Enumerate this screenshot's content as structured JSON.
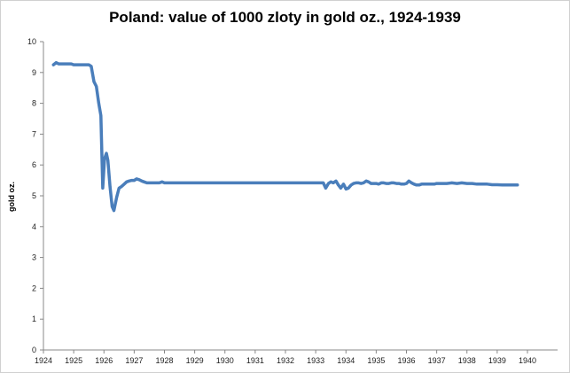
{
  "chart_data": {
    "type": "line",
    "title": "Poland: value of 1000 zloty in gold oz., 1924-1939",
    "xlabel": "",
    "ylabel": "gold oz.",
    "xlim": [
      1924,
      1940
    ],
    "ylim": [
      0,
      10
    ],
    "x_ticks": [
      "1924",
      "1925",
      "1926",
      "1927",
      "1928",
      "1929",
      "1930",
      "1931",
      "1932",
      "1933",
      "1934",
      "1935",
      "1936",
      "1937",
      "1938",
      "1939",
      "1940"
    ],
    "y_ticks": [
      "0",
      "1",
      "2",
      "3",
      "4",
      "5",
      "6",
      "7",
      "8",
      "9",
      "10"
    ],
    "grid": false,
    "legend": "none",
    "series": [
      {
        "color": "#4a7ebb",
        "x": [
          1924.33,
          1924.42,
          1924.5,
          1924.58,
          1924.67,
          1924.75,
          1924.83,
          1924.92,
          1925.0,
          1925.08,
          1925.17,
          1925.25,
          1925.33,
          1925.42,
          1925.5,
          1925.58,
          1925.67,
          1925.75,
          1925.83,
          1925.9,
          1925.96,
          1926.02,
          1926.08,
          1926.13,
          1926.2,
          1926.27,
          1926.33,
          1926.42,
          1926.5,
          1926.58,
          1926.67,
          1926.75,
          1926.83,
          1926.92,
          1927.0,
          1927.08,
          1927.17,
          1927.25,
          1927.33,
          1927.42,
          1927.5,
          1927.58,
          1927.67,
          1927.75,
          1927.83,
          1927.92,
          1928.0,
          1928.08,
          1929.0,
          1930.0,
          1931.0,
          1932.0,
          1933.0,
          1933.08,
          1933.17,
          1933.25,
          1933.33,
          1933.42,
          1933.5,
          1933.58,
          1933.67,
          1933.75,
          1933.83,
          1933.92,
          1934.0,
          1934.08,
          1934.17,
          1934.25,
          1934.33,
          1934.42,
          1934.5,
          1934.58,
          1934.67,
          1934.75,
          1934.83,
          1934.92,
          1935.0,
          1935.08,
          1935.17,
          1935.25,
          1935.33,
          1935.42,
          1935.5,
          1935.58,
          1935.67,
          1935.75,
          1935.83,
          1935.92,
          1936.0,
          1936.08,
          1936.17,
          1936.25,
          1936.33,
          1936.42,
          1936.5,
          1936.58,
          1936.67,
          1936.75,
          1936.83,
          1936.92,
          1937.0,
          1937.17,
          1937.33,
          1937.5,
          1937.67,
          1937.83,
          1938.0,
          1938.17,
          1938.33,
          1938.5,
          1938.67,
          1938.83,
          1939.0,
          1939.17,
          1939.33,
          1939.5,
          1939.67
        ],
        "values": [
          9.25,
          9.32,
          9.28,
          9.28,
          9.28,
          9.28,
          9.28,
          9.28,
          9.25,
          9.25,
          9.25,
          9.25,
          9.25,
          9.25,
          9.25,
          9.2,
          8.7,
          8.55,
          8.0,
          7.6,
          5.25,
          6.2,
          6.38,
          6.15,
          5.3,
          4.65,
          4.52,
          4.95,
          5.25,
          5.3,
          5.38,
          5.45,
          5.48,
          5.5,
          5.5,
          5.55,
          5.52,
          5.48,
          5.45,
          5.42,
          5.42,
          5.42,
          5.42,
          5.42,
          5.42,
          5.45,
          5.42,
          5.42,
          5.42,
          5.42,
          5.42,
          5.42,
          5.42,
          5.42,
          5.42,
          5.42,
          5.25,
          5.4,
          5.45,
          5.42,
          5.48,
          5.35,
          5.25,
          5.38,
          5.22,
          5.25,
          5.35,
          5.4,
          5.42,
          5.42,
          5.4,
          5.42,
          5.48,
          5.45,
          5.4,
          5.4,
          5.4,
          5.38,
          5.42,
          5.42,
          5.4,
          5.4,
          5.42,
          5.42,
          5.4,
          5.4,
          5.38,
          5.38,
          5.4,
          5.48,
          5.42,
          5.38,
          5.35,
          5.35,
          5.38,
          5.38,
          5.38,
          5.38,
          5.38,
          5.38,
          5.4,
          5.4,
          5.4,
          5.42,
          5.4,
          5.42,
          5.4,
          5.4,
          5.38,
          5.38,
          5.38,
          5.36,
          5.36,
          5.35,
          5.35,
          5.35,
          5.35
        ]
      }
    ]
  }
}
